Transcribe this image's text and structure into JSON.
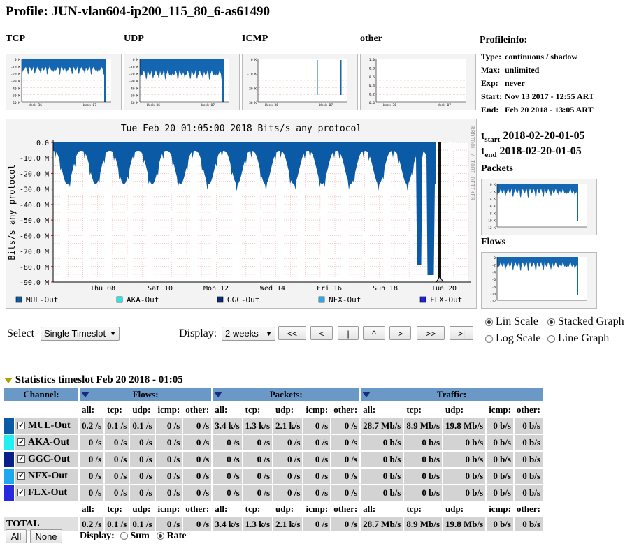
{
  "profile": {
    "title": "Profile: JUN-vlan604-ip200_115_80_6-as61490"
  },
  "thumbs": [
    {
      "label": "TCP",
      "ticks": [
        "0 K",
        "-10 K",
        "-20 K",
        "-30 K",
        "-40 K",
        "-50 K",
        "-60 K"
      ],
      "xticks": [
        "Week 36",
        "Week 07"
      ]
    },
    {
      "label": "UDP",
      "ticks": [
        "0 K",
        "-10 K",
        "-20 K",
        "-30 K",
        "-40 K",
        "-50 K",
        "-60 K"
      ],
      "xticks": [
        "Week 36",
        "Week 07"
      ]
    },
    {
      "label": "ICMP",
      "ticks": [
        "0 K",
        "-10 K",
        "-20 K",
        "-30 K"
      ],
      "xticks": [
        "Week 36",
        "Week 07"
      ]
    },
    {
      "label": "other",
      "ticks": [
        "1.0",
        "0.8",
        "0.6",
        "0.4",
        "0.2",
        "0.0"
      ],
      "xticks": [
        "Week 36",
        "Week 07"
      ]
    }
  ],
  "profileinfo": {
    "heading": "Profileinfo:",
    "rows": [
      {
        "k": "Type:",
        "v": "continuous / shadow"
      },
      {
        "k": "Max:",
        "v": "unlimited"
      },
      {
        "k": "Exp:",
        "v": "never"
      },
      {
        "k": "Start:",
        "v": "Nov 13 2017 - 12:55 ART"
      },
      {
        "k": "End:",
        "v": "Feb 20 2018 - 13:05 ART"
      }
    ]
  },
  "tstart": {
    "label": "start",
    "value": "2018-02-20-01-05"
  },
  "tend": {
    "label": "end",
    "value": "2018-02-20-01-05"
  },
  "side_thumbs": [
    {
      "label": "Packets",
      "ticks": [
        "0 K",
        "-2 K",
        "-4 K",
        "-6 K",
        "-8 K",
        "-10 K",
        "-12 K"
      ]
    },
    {
      "label": "Flows",
      "ticks": [
        "0",
        "-2",
        "-4",
        "-6",
        "-8",
        "-10",
        "-12"
      ]
    }
  ],
  "main_chart": {
    "title": "Tue Feb 20 01:05:00 2018 Bits/s any protocol",
    "ylabel": "Bits/s any protocol",
    "yticks": [
      "0.0",
      "-10.0 M",
      "-20.0 M",
      "-30.0 M",
      "-40.0 M",
      "-50.0 M",
      "-60.0 M",
      "-70.0 M",
      "-80.0 M",
      "-90.0 M"
    ],
    "xticks": [
      "Thu 08",
      "Sat 10",
      "Mon 12",
      "Wed 14",
      "Fri 16",
      "Sun 18",
      "Tue 20"
    ],
    "watermark": "RRDTOOL / TOBI OETIKER",
    "legend": [
      {
        "name": "MUL-Out",
        "color": "#0b5aa6"
      },
      {
        "name": "AKA-Out",
        "color": "#22e8e8"
      },
      {
        "name": "GGC-Out",
        "color": "#0a2a7a"
      },
      {
        "name": "NFX-Out",
        "color": "#2aa8e8"
      },
      {
        "name": "FLX-Out",
        "color": "#2020d8"
      }
    ]
  },
  "controls": {
    "select_label": "Select",
    "select_value": "Single Timeslot",
    "display_label": "Display:",
    "display_value": "2 weeks",
    "nav": [
      "<<",
      "<",
      "|",
      "^",
      ">",
      ">>",
      ">|"
    ],
    "scale": [
      {
        "label": "Lin Scale",
        "checked": true
      },
      {
        "label": "Log Scale",
        "checked": false
      }
    ],
    "graph": [
      {
        "label": "Stacked Graph",
        "checked": true
      },
      {
        "label": "Line Graph",
        "checked": false
      }
    ]
  },
  "stats": {
    "heading": "Statistics timeslot Feb 20 2018 - 01:05",
    "channel_label": "Channel:",
    "groups": [
      "Flows:",
      "Packets:",
      "Traffic:"
    ],
    "subheads": [
      "all:",
      "tcp:",
      "udp:",
      "icmp:",
      "other:"
    ],
    "rows": [
      {
        "name": "MUL-Out",
        "color": "#0b5aa6",
        "flows": [
          "0.2 /s",
          "0.1 /s",
          "0.1 /s",
          "0 /s",
          "0 /s"
        ],
        "packets": [
          "3.4 k/s",
          "1.3 k/s",
          "2.1 k/s",
          "0 /s",
          "0 /s"
        ],
        "traffic": [
          "28.7 Mb/s",
          "8.9 Mb/s",
          "19.8 Mb/s",
          "0 b/s",
          "0 b/s"
        ]
      },
      {
        "name": "AKA-Out",
        "color": "#22f0f0",
        "flows": [
          "0 /s",
          "0 /s",
          "0 /s",
          "0 /s",
          "0 /s"
        ],
        "packets": [
          "0 /s",
          "0 /s",
          "0 /s",
          "0 /s",
          "0 /s"
        ],
        "traffic": [
          "0 b/s",
          "0 b/s",
          "0 b/s",
          "0 b/s",
          "0 b/s"
        ]
      },
      {
        "name": "GGC-Out",
        "color": "#0a1f8a",
        "flows": [
          "0 /s",
          "0 /s",
          "0 /s",
          "0 /s",
          "0 /s"
        ],
        "packets": [
          "0 /s",
          "0 /s",
          "0 /s",
          "0 /s",
          "0 /s"
        ],
        "traffic": [
          "0 b/s",
          "0 b/s",
          "0 b/s",
          "0 b/s",
          "0 b/s"
        ]
      },
      {
        "name": "NFX-Out",
        "color": "#1ea8f0",
        "flows": [
          "0 /s",
          "0 /s",
          "0 /s",
          "0 /s",
          "0 /s"
        ],
        "packets": [
          "0 /s",
          "0 /s",
          "0 /s",
          "0 /s",
          "0 /s"
        ],
        "traffic": [
          "0 b/s",
          "0 b/s",
          "0 b/s",
          "0 b/s",
          "0 b/s"
        ]
      },
      {
        "name": "FLX-Out",
        "color": "#2828e0",
        "flows": [
          "0 /s",
          "0 /s",
          "0 /s",
          "0 /s",
          "0 /s"
        ],
        "packets": [
          "0 /s",
          "0 /s",
          "0 /s",
          "0 /s",
          "0 /s"
        ],
        "traffic": [
          "0 b/s",
          "0 b/s",
          "0 b/s",
          "0 b/s",
          "0 b/s"
        ]
      }
    ],
    "total": {
      "name": "TOTAL",
      "flows": [
        "0.2 /s",
        "0.1 /s",
        "0.1 /s",
        "0 /s",
        "0 /s"
      ],
      "packets": [
        "3.4 k/s",
        "1.3 k/s",
        "2.1 k/s",
        "0 /s",
        "0 /s"
      ],
      "traffic": [
        "28.7 Mb/s",
        "8.9 Mb/s",
        "19.8 Mb/s",
        "0 b/s",
        "0 b/s"
      ]
    },
    "all_btn": "All",
    "none_btn": "None",
    "display_label": "Display:",
    "display_opts": [
      {
        "label": "Sum",
        "checked": false
      },
      {
        "label": "Rate",
        "checked": true
      }
    ]
  }
}
